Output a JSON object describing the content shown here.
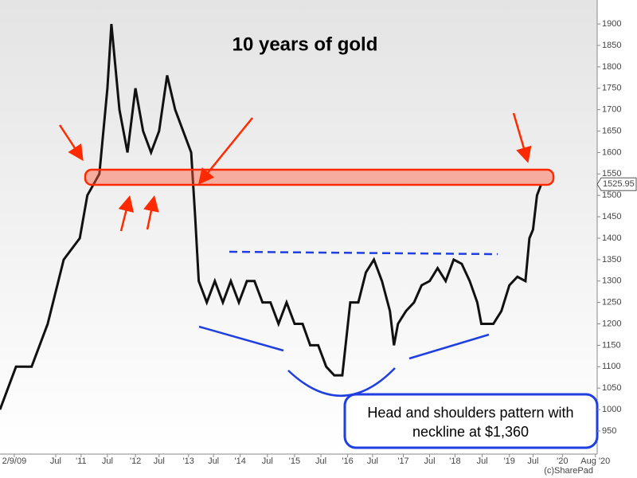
{
  "chart_data": {
    "type": "line",
    "title": "10 years of gold",
    "annotation_lines": [
      "Head and shoulders pattern with",
      "neckline at $1,360"
    ],
    "credit": "(c)SharePad",
    "last_price": 1525.95,
    "color": "#111111",
    "xlim": [
      0,
      134
    ],
    "xticks": [
      {
        "value": 3.2,
        "label": "2/9/09"
      },
      {
        "value": 12.5,
        "label": "Jul"
      },
      {
        "value": 18.2,
        "label": "'11"
      },
      {
        "value": 24.1,
        "label": "Jul"
      },
      {
        "value": 30.4,
        "label": "'12"
      },
      {
        "value": 35.7,
        "label": "Jul"
      },
      {
        "value": 42.3,
        "label": "'13"
      },
      {
        "value": 47.9,
        "label": "Jul"
      },
      {
        "value": 53.9,
        "label": "'14"
      },
      {
        "value": 60,
        "label": "Jul"
      },
      {
        "value": 66.1,
        "label": "'15"
      },
      {
        "value": 72,
        "label": "Jul"
      },
      {
        "value": 78,
        "label": "'16"
      },
      {
        "value": 83.6,
        "label": "Jul"
      },
      {
        "value": 90.5,
        "label": "'17"
      },
      {
        "value": 96.4,
        "label": "Jul"
      },
      {
        "value": 102.1,
        "label": "'18"
      },
      {
        "value": 108.2,
        "label": "Jul"
      },
      {
        "value": 114.3,
        "label": "'19"
      },
      {
        "value": 119.6,
        "label": "Jul"
      },
      {
        "value": 126.2,
        "label": "'20"
      },
      {
        "value": 133.6,
        "label": "Aug '20"
      }
    ],
    "ylim": [
      896,
      1956
    ],
    "yticks": [
      950,
      1000,
      1050,
      1100,
      1150,
      1200,
      1250,
      1300,
      1350,
      1400,
      1450,
      1500,
      1550,
      1600,
      1650,
      1700,
      1750,
      1800,
      1850,
      1900
    ],
    "x": [
      0,
      3.6,
      7.1,
      10.7,
      14.3,
      17.9,
      19.6,
      22.3,
      24.1,
      25,
      26.8,
      28.6,
      30.4,
      32.1,
      33.9,
      35.7,
      37.5,
      39.3,
      41.1,
      42.9,
      43.8,
      44.6,
      46.4,
      48.2,
      50,
      51.8,
      53.6,
      55.4,
      57.1,
      58.9,
      60.7,
      62.5,
      64.3,
      66.1,
      67.9,
      69.6,
      71.4,
      73.2,
      75,
      76.8,
      78.6,
      80.4,
      82.1,
      83.9,
      85.7,
      87.5,
      88.4,
      89.3,
      91.1,
      92.9,
      94.6,
      96.4,
      98.2,
      100,
      101.8,
      103.6,
      105.4,
      107.1,
      108,
      108.9,
      110.7,
      112.5,
      114.3,
      116.1,
      117.9,
      118.8,
      119.6,
      120.5,
      121.4
    ],
    "values": [
      1000,
      1100,
      1100,
      1200,
      1350,
      1400,
      1500,
      1550,
      1750,
      1900,
      1700,
      1600,
      1750,
      1650,
      1600,
      1650,
      1780,
      1700,
      1650,
      1600,
      1450,
      1300,
      1250,
      1300,
      1250,
      1300,
      1250,
      1300,
      1300,
      1250,
      1250,
      1200,
      1250,
      1200,
      1200,
      1150,
      1150,
      1100,
      1080,
      1080,
      1250,
      1250,
      1320,
      1350,
      1300,
      1230,
      1150,
      1200,
      1230,
      1250,
      1290,
      1300,
      1330,
      1300,
      1350,
      1340,
      1300,
      1250,
      1200,
      1200,
      1200,
      1230,
      1290,
      1310,
      1300,
      1400,
      1420,
      1500,
      1525
    ]
  }
}
